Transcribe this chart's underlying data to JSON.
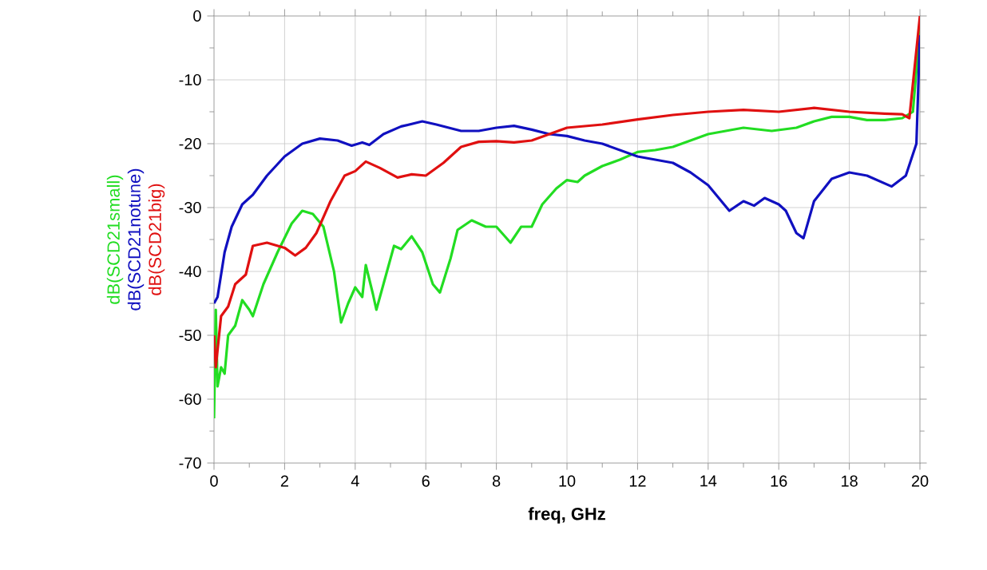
{
  "chart_data": {
    "type": "line",
    "xlabel": "freq, GHz",
    "xlim": [
      0,
      20
    ],
    "ylim": [
      -70,
      0
    ],
    "xticks": [
      0,
      2,
      4,
      6,
      8,
      10,
      12,
      14,
      16,
      18,
      20
    ],
    "yticks": [
      -70,
      -60,
      -50,
      -40,
      -30,
      -20,
      -10,
      0
    ],
    "grid": true,
    "line_style": "solid",
    "marker": "none",
    "series": [
      {
        "name": "dB(SCD21small)",
        "color": "#22dd22",
        "x": [
          0,
          0.05,
          0.1,
          0.2,
          0.3,
          0.4,
          0.6,
          0.8,
          1,
          1.1,
          1.4,
          1.8,
          2.2,
          2.5,
          2.8,
          3.1,
          3.4,
          3.6,
          3.8,
          4,
          4.2,
          4.3,
          4.5,
          4.6,
          4.8,
          5.1,
          5.3,
          5.6,
          5.9,
          6.2,
          6.4,
          6.7,
          6.9,
          7.3,
          7.7,
          8,
          8.4,
          8.7,
          9,
          9.3,
          9.7,
          10,
          10.3,
          10.5,
          11,
          11.5,
          12,
          12.5,
          13,
          13.5,
          14,
          15,
          15.8,
          16.5,
          17,
          17.5,
          18,
          18.5,
          19,
          19.5,
          19.8,
          20
        ],
        "values": [
          -63,
          -46,
          -58,
          -55,
          -56,
          -50,
          -48.5,
          -44.5,
          -46,
          -47,
          -42,
          -37,
          -32.5,
          -30.5,
          -31,
          -33,
          -40,
          -48,
          -45,
          -42.5,
          -44,
          -39,
          -43.5,
          -46,
          -42,
          -36,
          -36.5,
          -34.5,
          -37,
          -42,
          -43.3,
          -38,
          -33.5,
          -32,
          -33,
          -33,
          -35.5,
          -33,
          -33,
          -29.5,
          -27,
          -25.7,
          -26,
          -25,
          -23.5,
          -22.5,
          -21.3,
          -21,
          -20.5,
          -19.5,
          -18.5,
          -17.5,
          -18,
          -17.5,
          -16.5,
          -15.8,
          -15.8,
          -16.3,
          -16.3,
          -16,
          -15,
          -2
        ]
      },
      {
        "name": "dB(SCD21notune)",
        "color": "#1010c0",
        "x": [
          0,
          0.1,
          0.3,
          0.5,
          0.8,
          1.1,
          1.5,
          2,
          2.5,
          3,
          3.5,
          3.9,
          4.2,
          4.4,
          4.8,
          5.3,
          5.9,
          6.3,
          7,
          7.5,
          8,
          8.5,
          9,
          9.5,
          10,
          10.5,
          11,
          11.5,
          12,
          12.5,
          13,
          13.5,
          14,
          14.3,
          14.6,
          15,
          15.3,
          15.6,
          16,
          16.2,
          16.5,
          16.7,
          17,
          17.5,
          18,
          18.5,
          19.2,
          19.6,
          19.9,
          20
        ],
        "values": [
          -45,
          -44,
          -37,
          -33,
          -29.5,
          -28,
          -25,
          -22,
          -20,
          -19.2,
          -19.5,
          -20.3,
          -19.8,
          -20.2,
          -18.5,
          -17.3,
          -16.5,
          -17,
          -18,
          -18,
          -17.5,
          -17.2,
          -17.8,
          -18.5,
          -18.8,
          -19.5,
          -20,
          -21,
          -22,
          -22.5,
          -23,
          -24.5,
          -26.5,
          -28.5,
          -30.5,
          -29,
          -29.7,
          -28.5,
          -29.5,
          -30.5,
          -34,
          -34.8,
          -29,
          -25.5,
          -24.5,
          -25,
          -26.7,
          -25,
          -20,
          -3
        ]
      },
      {
        "name": "dB(SCD21big)",
        "color": "#e01010",
        "x": [
          0,
          0.05,
          0.2,
          0.4,
          0.6,
          0.9,
          1.1,
          1.5,
          2,
          2.3,
          2.6,
          2.9,
          3.3,
          3.7,
          4,
          4.3,
          4.7,
          5.2,
          5.6,
          6,
          6.5,
          7,
          7.5,
          8,
          8.5,
          9,
          9.5,
          10,
          11,
          12,
          13,
          14,
          15,
          16,
          17,
          18,
          19,
          19.5,
          19.7,
          20
        ],
        "values": [
          -50,
          -55,
          -47,
          -45.5,
          -42,
          -40.5,
          -36,
          -35.5,
          -36.3,
          -37.5,
          -36.3,
          -34,
          -29,
          -25,
          -24.3,
          -22.8,
          -23.8,
          -25.3,
          -24.8,
          -25,
          -23,
          -20.5,
          -19.7,
          -19.6,
          -19.8,
          -19.5,
          -18.5,
          -17.5,
          -17,
          -16.2,
          -15.5,
          -15,
          -14.7,
          -15,
          -14.4,
          -15,
          -15.3,
          -15.4,
          -16,
          0
        ]
      }
    ]
  }
}
